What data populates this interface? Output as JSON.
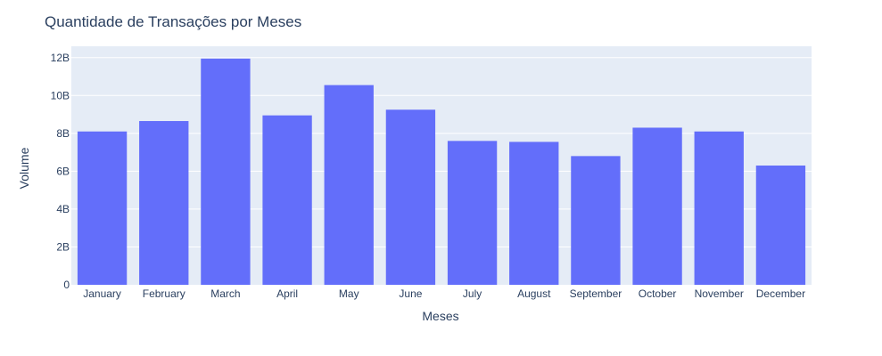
{
  "chart_data": {
    "type": "bar",
    "title": "Quantidade de Transações por Meses",
    "xlabel": "Meses",
    "ylabel": "Volume",
    "categories": [
      "January",
      "February",
      "March",
      "April",
      "May",
      "June",
      "July",
      "August",
      "September",
      "October",
      "November",
      "December"
    ],
    "values": [
      8100000000.0,
      8650000000.0,
      11950000000.0,
      8950000000.0,
      10550000000.0,
      9250000000.0,
      7600000000.0,
      7550000000.0,
      6800000000.0,
      8300000000.0,
      8100000000.0,
      6300000000.0
    ],
    "ylim": [
      0,
      12600000000.0
    ],
    "yticks": [
      0,
      2000000000.0,
      4000000000.0,
      6000000000.0,
      8000000000.0,
      10000000000.0,
      12000000000.0
    ],
    "ytick_labels": [
      "0",
      "2B",
      "4B",
      "6B",
      "8B",
      "10B",
      "12B"
    ],
    "grid": true,
    "colors": {
      "bar": "#636efa",
      "plot_bg": "#e5ecf6",
      "grid": "#ffffff",
      "text": "#2a3f5f"
    }
  }
}
